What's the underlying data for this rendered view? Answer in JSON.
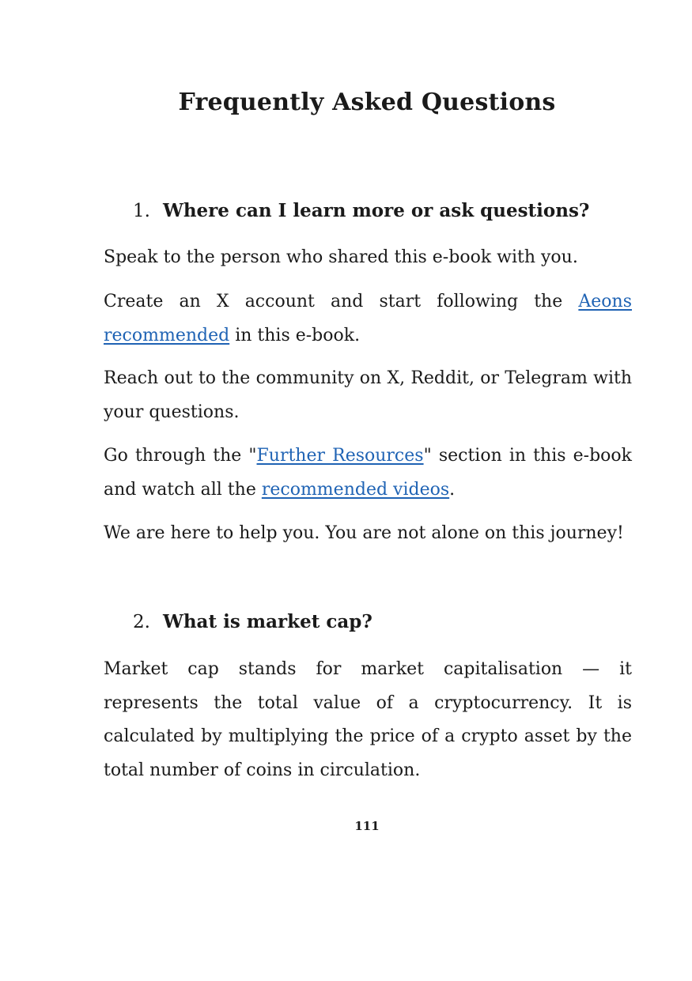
{
  "title": "Frequently Asked Questions",
  "questions": [
    {
      "number": "1.",
      "text": "Where can I learn more or ask questions?",
      "p1": "Speak to the person who shared this e-book with you.",
      "p2_before": "Create an X account and start following the ",
      "p2_link": "Aeons recommended",
      "p2_after": " in this e-book.",
      "p3": "Reach out to the community on X, Reddit, or Telegram with your questions.",
      "p4_before": "Go through the \"",
      "p4_link1": "Further Resources",
      "p4_mid": "\" section in this e-book and watch all the ",
      "p4_link2": "recommended videos",
      "p4_after": ".",
      "p5": "We are here to help you. You are not alone on this journey!"
    },
    {
      "number": "2.",
      "text": "What is market cap?",
      "p1": "Market cap stands for market capitalisation — it represents the total value of a cryptocurrency. It is calculated by multiplying the price of a crypto asset by the total number of coins in circulation."
    }
  ],
  "page_number": "111",
  "colors": {
    "link": "#1f63b4",
    "text": "#1a1a1a"
  }
}
